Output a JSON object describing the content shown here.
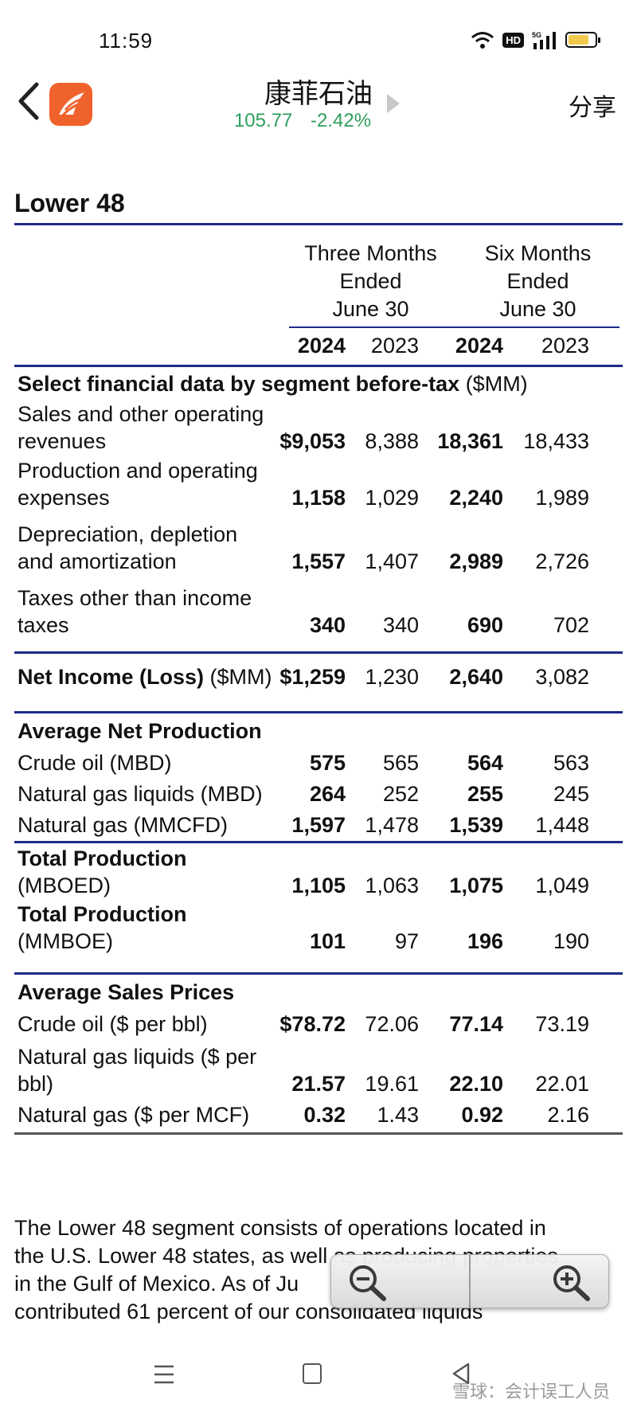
{
  "status_bar": {
    "time": "11:59",
    "signal_label": "5G",
    "hd_label": "HD"
  },
  "header": {
    "stock_name": "康菲石油",
    "price": "105.77",
    "change": "-2.42%",
    "share_label": "分享"
  },
  "doc": {
    "title": "Lower 48",
    "col_groups": [
      "Three Months Ended June 30",
      "Six Months Ended June 30"
    ],
    "col_group_lines": [
      [
        "Three Months",
        "Ended",
        "June 30"
      ],
      [
        "Six Months",
        "Ended",
        "June 30"
      ]
    ],
    "years": [
      "2024",
      "2023",
      "2024",
      "2023"
    ],
    "section1": {
      "title_bold": "Select financial data by segment before-tax",
      "title_unit": " ($MM)"
    },
    "fin_rows": [
      {
        "label1": "Sales and other operating",
        "label2": "revenues",
        "v": [
          "$9,053",
          "8,388",
          "18,361",
          "18,433"
        ]
      },
      {
        "label1": "Production and operating",
        "label2": "expenses",
        "v": [
          "1,158",
          "1,029",
          "2,240",
          "1,989"
        ]
      },
      {
        "label1": "Depreciation, depletion",
        "label2": "and amortization",
        "v": [
          "1,557",
          "1,407",
          "2,989",
          "2,726"
        ]
      },
      {
        "label1": "Taxes other than income",
        "label2": "taxes",
        "v": [
          "340",
          "340",
          "690",
          "702"
        ]
      }
    ],
    "net_income": {
      "label_bold": "Net Income (Loss)",
      "label_unit": " ($MM)",
      "v": [
        "$1,259",
        "1,230",
        "2,640",
        "3,082"
      ]
    },
    "section2": {
      "title": "Average Net Production"
    },
    "prod_rows": [
      {
        "label": "Crude oil (MBD)",
        "v": [
          "575",
          "565",
          "564",
          "563"
        ]
      },
      {
        "label": "Natural gas liquids (MBD)",
        "v": [
          "264",
          "252",
          "255",
          "245"
        ]
      },
      {
        "label": "Natural gas (MMCFD)",
        "v": [
          "1,597",
          "1,478",
          "1,539",
          "1,448"
        ]
      }
    ],
    "total_rows": [
      {
        "label_bold": "Total Production",
        "label_unit": "(MBOED)",
        "v": [
          "1,105",
          "1,063",
          "1,075",
          "1,049"
        ]
      },
      {
        "label_bold": "Total Production",
        "label_unit": "(MMBOE)",
        "v": [
          "101",
          "97",
          "196",
          "190"
        ]
      }
    ],
    "section3": {
      "title": "Average Sales Prices"
    },
    "price_rows": [
      {
        "label1": "Crude oil ($ per bbl)",
        "label2": "",
        "v": [
          "$78.72",
          "72.06",
          "77.14",
          "73.19"
        ]
      },
      {
        "label1": "Natural gas liquids ($ per",
        "label2": "bbl)",
        "v": [
          "21.57",
          "19.61",
          "22.10",
          "22.01"
        ]
      },
      {
        "label1": "Natural gas ($ per MCF)",
        "label2": "",
        "v": [
          "0.32",
          "1.43",
          "0.92",
          "2.16"
        ]
      }
    ],
    "paragraph_lines": [
      "The Lower 48 segment consists of operations located in",
      "the U.S. Lower 48 states, as well as producing properties",
      "in the Gulf of Mexico. As of Ju",
      "contributed 61 percent of our consolidated liquids"
    ]
  },
  "nav": {
    "watermark": "雪球：会计误工人员"
  },
  "colors": {
    "accent_blue": "#1e2a8a",
    "quote_green": "#2e9e5b",
    "logo_orange": "#f0622b"
  },
  "icons": [
    "back-chevron-icon",
    "app-logo-icon",
    "play-icon",
    "zoom-out-icon",
    "zoom-in-icon",
    "menu-icon",
    "home-icon",
    "back-triangle-icon",
    "wifi-icon",
    "signal-icon",
    "battery-icon"
  ]
}
